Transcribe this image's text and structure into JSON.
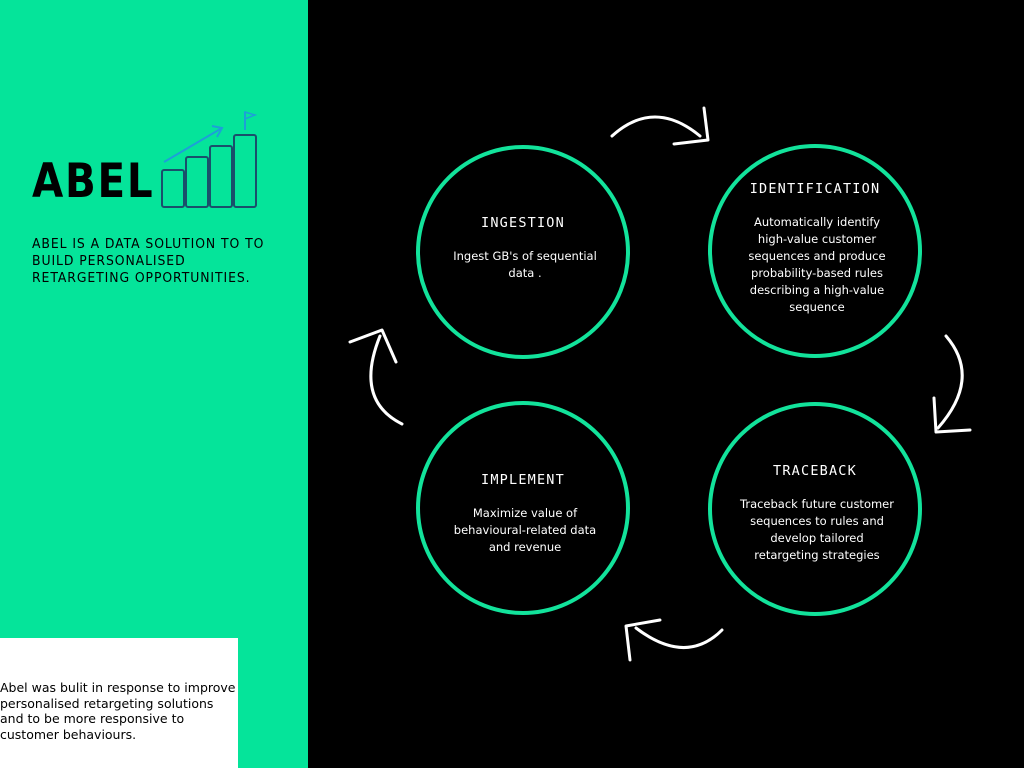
{
  "brand": {
    "name": "ABEL",
    "tagline": "ABEL IS A DATA SOLUTION TO  TO BUILD PERSONALISED RETARGETING OPPORTUNITIES.",
    "icon": "growth-bar-chart-icon"
  },
  "note": {
    "text": "Abel was bulit in response to improve personalised retargeting solutions and to be more  responsive to customer behaviours."
  },
  "cycle": {
    "stages": [
      {
        "title": "INGESTION",
        "description": "Ingest GB's of sequential data ."
      },
      {
        "title": "IDENTIFICATION",
        "description": "Automatically identify high-value customer sequences  and produce probability-based rules describing a high-value sequence"
      },
      {
        "title": "TRACEBACK",
        "description": "Traceback future customer sequences to rules and develop tailored retargeting strategies"
      },
      {
        "title": "IMPLEMENT",
        "description": "Maximize  value of behavioural-related data and revenue"
      }
    ]
  },
  "colors": {
    "left_panel": "#05e49a",
    "circle_stroke": "#12e39b",
    "background": "#000000",
    "note_box": "#ffffff",
    "text_light": "#ffffff",
    "text_dark": "#000000"
  }
}
